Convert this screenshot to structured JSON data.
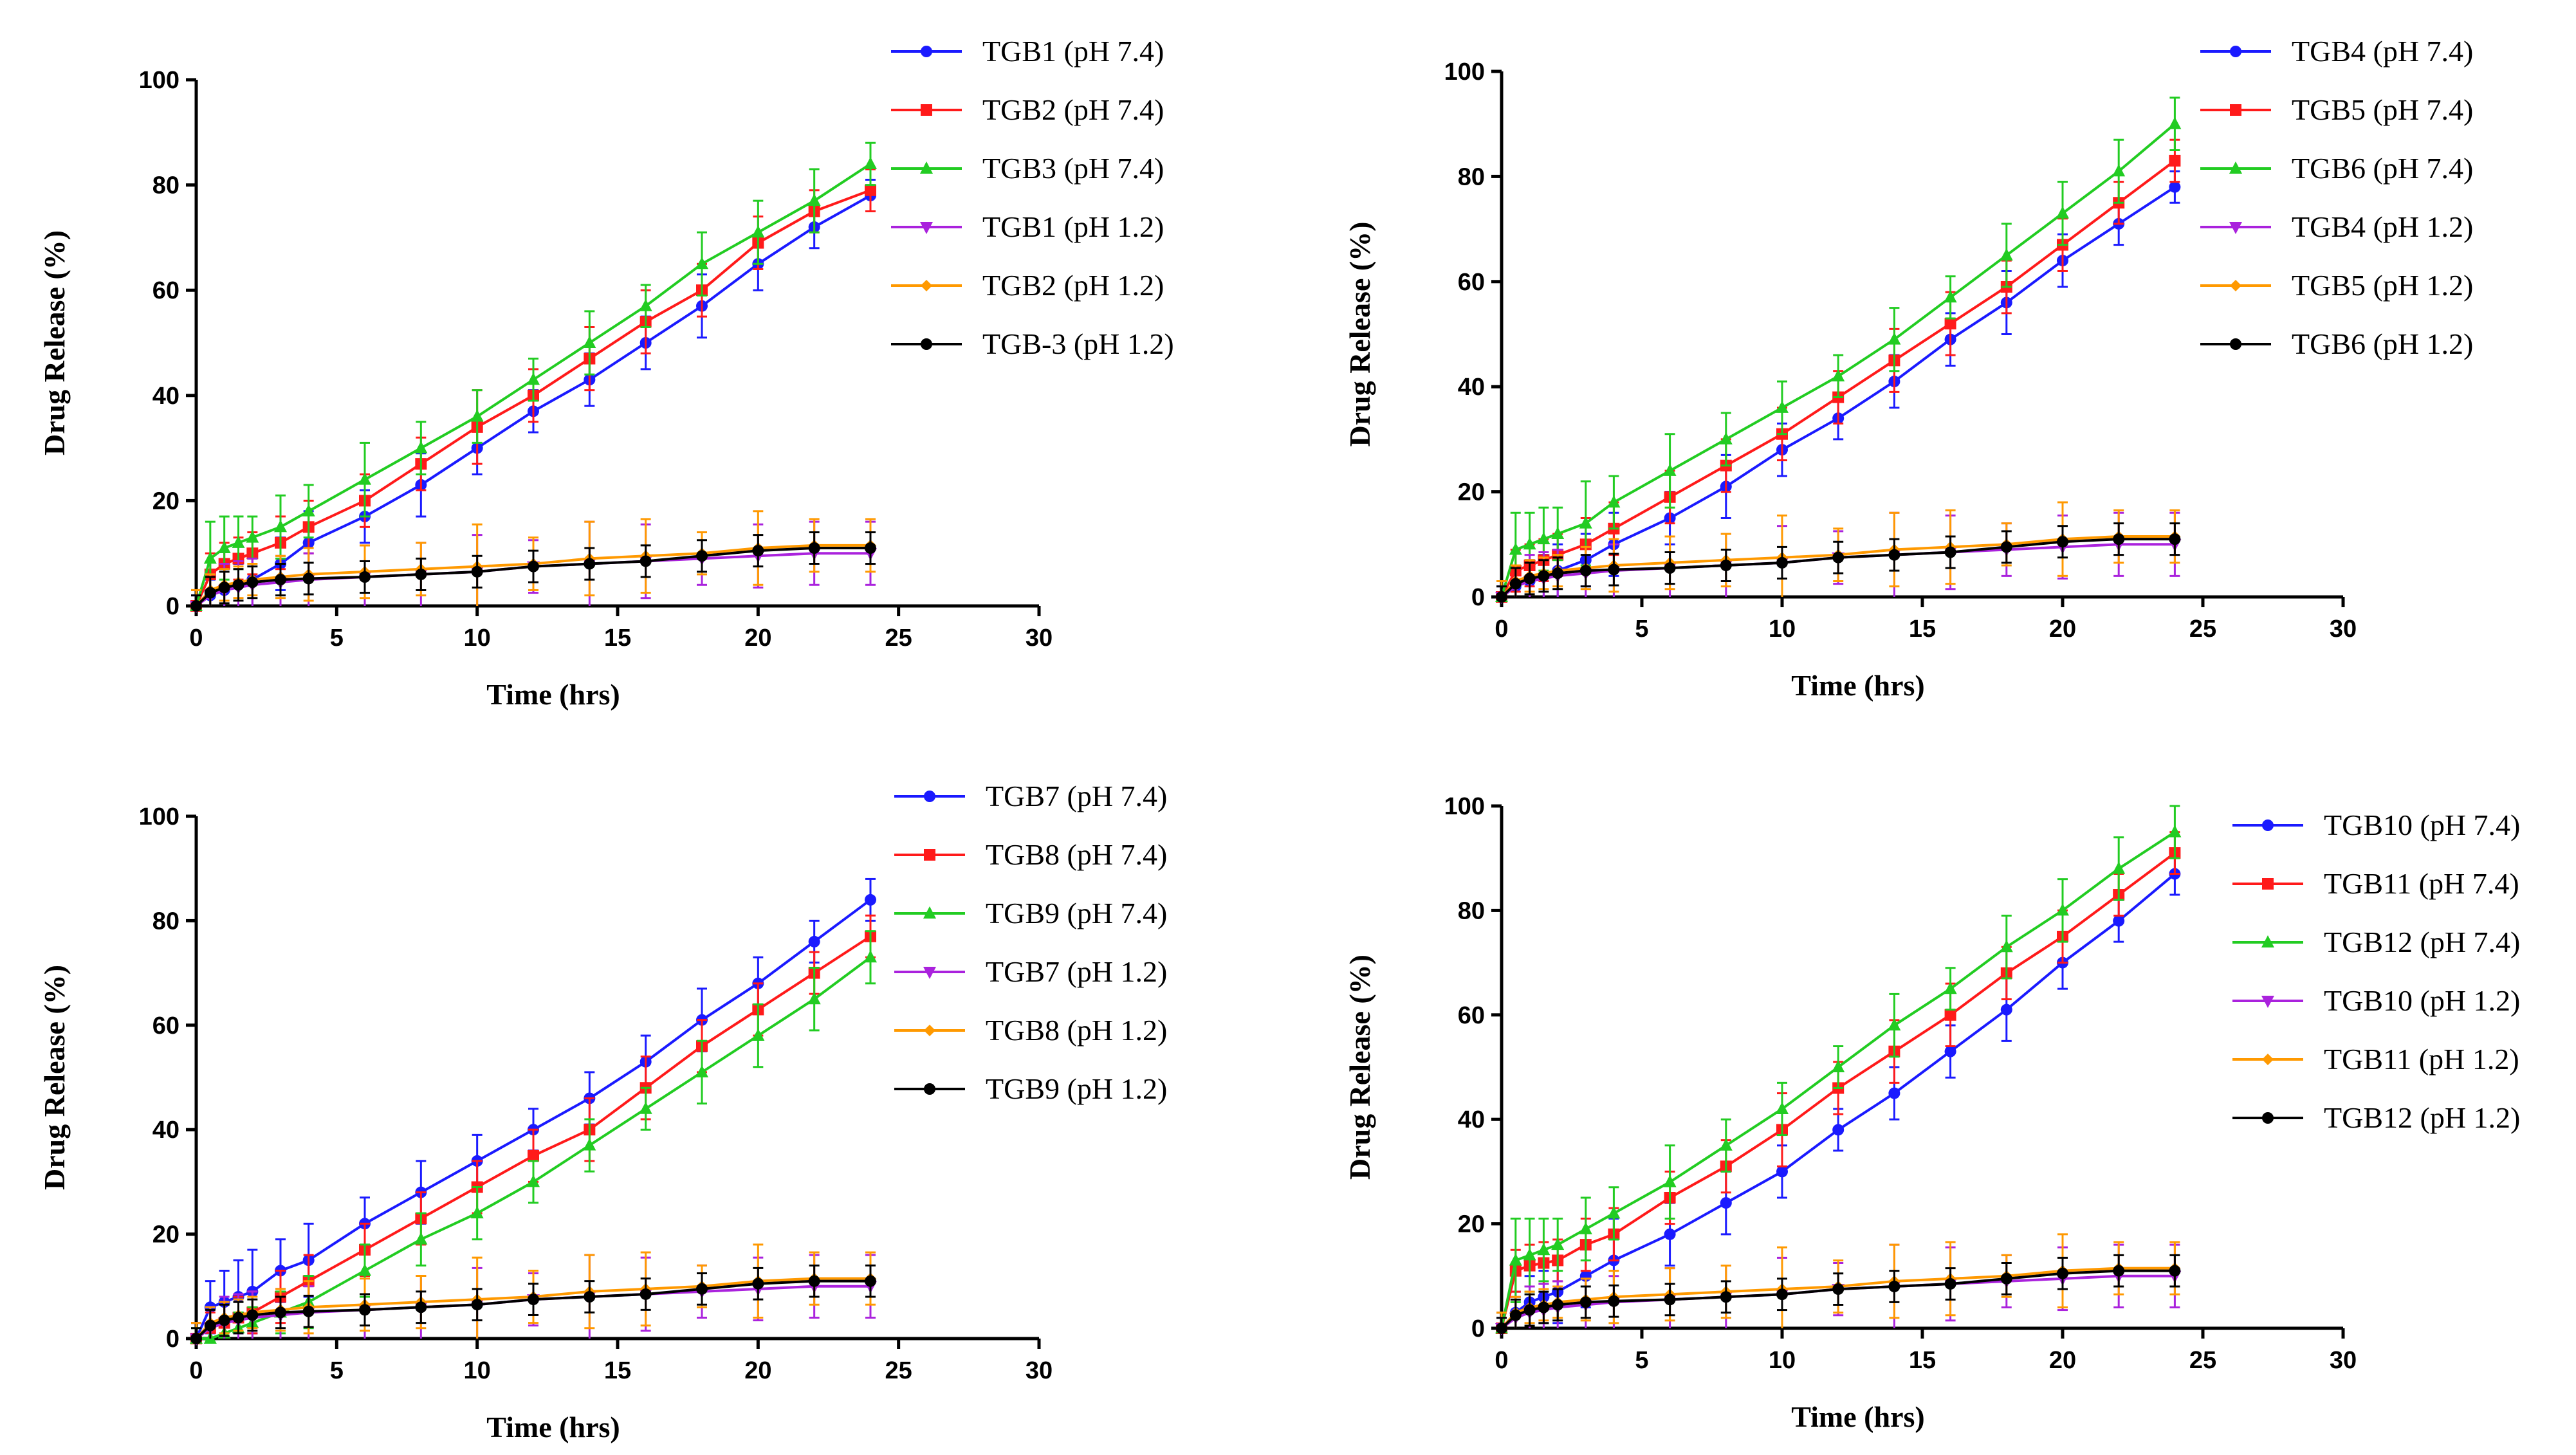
{
  "chart_data": [
    {
      "type": "line",
      "xlabel": "Time (hrs)",
      "ylabel": "Drug Release (%)",
      "xlim": [
        0,
        30
      ],
      "ylim": [
        0,
        100
      ],
      "xticks": [
        "0",
        "5",
        "10",
        "15",
        "20",
        "25",
        "30"
      ],
      "yticks": [
        "0",
        "20",
        "40",
        "60",
        "80",
        "100"
      ],
      "x": [
        0,
        0.5,
        1,
        1.5,
        2,
        3,
        4,
        6,
        8,
        10,
        12,
        14,
        16,
        18,
        20,
        22,
        24
      ],
      "legend_position": "top-right",
      "series": [
        {
          "name": "TGB1 (pH 7.4)",
          "color": "#1a1aff",
          "marker": "circle",
          "values": [
            0,
            2,
            3,
            4,
            5,
            8,
            12,
            17,
            23,
            30,
            37,
            43,
            50,
            57,
            65,
            72,
            78
          ],
          "errors": [
            2,
            3,
            4,
            4,
            5,
            5,
            6,
            5,
            6,
            5,
            4,
            5,
            5,
            6,
            5,
            4,
            3
          ]
        },
        {
          "name": "TGB2 (pH 7.4)",
          "color": "#ff1a1a",
          "marker": "square",
          "values": [
            0,
            6,
            8,
            9,
            10,
            12,
            15,
            20,
            27,
            34,
            40,
            47,
            54,
            60,
            69,
            75,
            79
          ],
          "errors": [
            3,
            4,
            4,
            4,
            4,
            5,
            5,
            5,
            5,
            7,
            5,
            6,
            6,
            5,
            5,
            4,
            4
          ]
        },
        {
          "name": "TGB3 (pH 7.4)",
          "color": "#22cc22",
          "marker": "triangle",
          "values": [
            0,
            9,
            11,
            12,
            13,
            15,
            18,
            24,
            30,
            36,
            43,
            50,
            57,
            65,
            71,
            77,
            84
          ],
          "errors": [
            3,
            7,
            6,
            5,
            4,
            6,
            5,
            7,
            5,
            5,
            4,
            6,
            4,
            6,
            6,
            6,
            4
          ]
        },
        {
          "name": "TGB1 (pH 1.2)",
          "color": "#aa22dd",
          "marker": "triangle-down",
          "values": [
            0,
            2,
            3,
            3.5,
            4,
            4.5,
            5,
            5.5,
            6,
            6.5,
            7.5,
            8,
            8.5,
            9,
            9.5,
            10,
            10
          ],
          "errors": [
            3,
            4,
            5,
            5,
            5,
            5,
            5,
            6,
            6,
            7,
            5,
            8,
            7,
            5,
            6,
            6,
            6
          ]
        },
        {
          "name": "TGB2 (pH 1.2)",
          "color": "#ff9900",
          "marker": "diamond",
          "values": [
            0,
            3,
            4,
            4.5,
            5,
            5.5,
            6,
            6.5,
            7,
            7.5,
            8,
            9,
            9.5,
            10,
            11,
            11.5,
            11.5
          ],
          "errors": [
            3,
            3,
            3,
            3,
            3,
            4,
            5,
            5,
            5,
            8,
            5,
            7,
            7,
            4,
            7,
            5,
            5
          ]
        },
        {
          "name": "TGB-3 (pH 1.2)",
          "color": "#000000",
          "marker": "circle",
          "values": [
            0,
            2.5,
            3.5,
            4,
            4.5,
            5,
            5.2,
            5.5,
            6,
            6.5,
            7.5,
            8,
            8.5,
            9.5,
            10.5,
            11,
            11
          ],
          "errors": [
            2,
            3,
            3,
            3,
            3,
            3,
            3,
            3,
            3,
            3,
            3,
            3,
            3,
            3,
            3,
            3,
            3
          ]
        }
      ]
    },
    {
      "type": "line",
      "xlabel": "Time (hrs)",
      "ylabel": "Drug Release (%)",
      "xlim": [
        0,
        30
      ],
      "ylim": [
        0,
        100
      ],
      "xticks": [
        "0",
        "5",
        "10",
        "15",
        "20",
        "25",
        "30"
      ],
      "yticks": [
        "0",
        "20",
        "40",
        "60",
        "80",
        "100"
      ],
      "x": [
        0,
        0.5,
        1,
        1.5,
        2,
        3,
        4,
        6,
        8,
        10,
        12,
        14,
        16,
        18,
        20,
        22,
        24
      ],
      "legend_position": "top-right",
      "series": [
        {
          "name": "TGB4 (pH 7.4)",
          "color": "#1a1aff",
          "marker": "circle",
          "values": [
            0,
            2,
            3,
            4,
            5,
            7,
            10,
            15,
            21,
            28,
            34,
            41,
            49,
            56,
            64,
            71,
            78
          ],
          "errors": [
            2,
            3,
            4,
            4,
            5,
            5,
            6,
            5,
            6,
            5,
            4,
            5,
            5,
            6,
            5,
            4,
            3
          ]
        },
        {
          "name": "TGB5 (pH 7.4)",
          "color": "#ff1a1a",
          "marker": "square",
          "values": [
            0,
            5,
            6,
            7,
            8,
            10,
            13,
            19,
            25,
            31,
            38,
            45,
            52,
            59,
            67,
            75,
            83
          ],
          "errors": [
            3,
            4,
            4,
            4,
            4,
            5,
            5,
            5,
            5,
            5,
            5,
            6,
            6,
            5,
            5,
            4,
            4
          ]
        },
        {
          "name": "TGB6 (pH 7.4)",
          "color": "#22cc22",
          "marker": "triangle",
          "values": [
            0,
            9,
            10,
            11,
            12,
            14,
            18,
            24,
            30,
            36,
            42,
            49,
            57,
            65,
            73,
            81,
            90
          ],
          "errors": [
            3,
            7,
            6,
            6,
            5,
            8,
            5,
            7,
            5,
            5,
            4,
            6,
            4,
            6,
            6,
            6,
            5
          ]
        },
        {
          "name": "TGB4 (pH 1.2)",
          "color": "#aa22dd",
          "marker": "triangle-down",
          "values": [
            0,
            2,
            3,
            3.5,
            4,
            4.5,
            5,
            5.5,
            6,
            6.5,
            7.5,
            8,
            8.5,
            9,
            9.5,
            10,
            10
          ],
          "errors": [
            3,
            4,
            5,
            5,
            5,
            5,
            5,
            6,
            6,
            7,
            5,
            8,
            7,
            5,
            6,
            6,
            6
          ]
        },
        {
          "name": "TGB5 (pH 1.2)",
          "color": "#ff9900",
          "marker": "diamond",
          "values": [
            0,
            3,
            4,
            4.5,
            5,
            5.5,
            6,
            6.5,
            7,
            7.5,
            8,
            9,
            9.5,
            10,
            11,
            11.5,
            11.5
          ],
          "errors": [
            3,
            3,
            3,
            3,
            3,
            4,
            5,
            5,
            5,
            8,
            5,
            7,
            7,
            4,
            7,
            5,
            5
          ]
        },
        {
          "name": "TGB6 (pH 1.2)",
          "color": "#000000",
          "marker": "circle",
          "values": [
            0,
            2.5,
            3.5,
            4,
            4.5,
            5,
            5.2,
            5.5,
            6,
            6.5,
            7.5,
            8,
            8.5,
            9.5,
            10.5,
            11,
            11
          ],
          "errors": [
            2,
            3,
            3,
            3,
            3,
            3,
            3,
            3,
            3,
            3,
            3,
            3,
            3,
            3,
            3,
            3,
            3
          ]
        }
      ]
    },
    {
      "type": "line",
      "xlabel": "Time (hrs)",
      "ylabel": "Drug Release (%)",
      "xlim": [
        0,
        30
      ],
      "ylim": [
        0,
        100
      ],
      "xticks": [
        "0",
        "5",
        "10",
        "15",
        "20",
        "25",
        "30"
      ],
      "yticks": [
        "0",
        "20",
        "40",
        "60",
        "80",
        "100"
      ],
      "x": [
        0,
        0.5,
        1,
        1.5,
        2,
        3,
        4,
        6,
        8,
        10,
        12,
        14,
        16,
        18,
        20,
        22,
        24
      ],
      "legend_position": "top-right",
      "series": [
        {
          "name": "TGB7 (pH 7.4)",
          "color": "#1a1aff",
          "marker": "circle",
          "values": [
            0,
            6,
            7,
            8,
            9,
            13,
            15,
            22,
            28,
            34,
            40,
            46,
            53,
            61,
            68,
            76,
            84
          ],
          "errors": [
            3,
            5,
            6,
            7,
            8,
            6,
            7,
            5,
            6,
            5,
            4,
            5,
            5,
            6,
            5,
            4,
            4
          ]
        },
        {
          "name": "TGB8 (pH 7.4)",
          "color": "#ff1a1a",
          "marker": "square",
          "values": [
            0,
            2,
            3,
            4,
            5,
            8,
            11,
            17,
            23,
            29,
            35,
            40,
            48,
            56,
            63,
            70,
            77
          ],
          "errors": [
            3,
            3,
            4,
            4,
            4,
            5,
            5,
            5,
            5,
            5,
            5,
            6,
            6,
            5,
            5,
            4,
            4
          ]
        },
        {
          "name": "TGB9 (pH 7.4)",
          "color": "#22cc22",
          "marker": "triangle",
          "values": [
            0,
            0,
            1,
            2,
            3,
            5,
            7,
            13,
            19,
            24,
            30,
            37,
            44,
            51,
            58,
            65,
            73
          ],
          "errors": [
            2,
            2,
            3,
            3,
            3,
            4,
            5,
            5,
            5,
            5,
            4,
            5,
            4,
            6,
            6,
            6,
            5
          ]
        },
        {
          "name": "TGB7 (pH 1.2)",
          "color": "#aa22dd",
          "marker": "triangle-down",
          "values": [
            0,
            2,
            3,
            3.5,
            4,
            4.5,
            5,
            5.5,
            6,
            6.5,
            7.5,
            8,
            8.5,
            9,
            9.5,
            10,
            10
          ],
          "errors": [
            3,
            4,
            5,
            5,
            5,
            5,
            5,
            6,
            6,
            7,
            5,
            8,
            7,
            5,
            6,
            6,
            6
          ]
        },
        {
          "name": "TGB8 (pH 1.2)",
          "color": "#ff9900",
          "marker": "diamond",
          "values": [
            0,
            3,
            4,
            4.5,
            5,
            5.5,
            6,
            6.5,
            7,
            7.5,
            8,
            9,
            9.5,
            10,
            11,
            11.5,
            11.5
          ],
          "errors": [
            3,
            3,
            3,
            3,
            3,
            4,
            5,
            5,
            5,
            8,
            5,
            7,
            7,
            4,
            7,
            5,
            5
          ]
        },
        {
          "name": "TGB9 (pH 1.2)",
          "color": "#000000",
          "marker": "circle",
          "values": [
            0,
            2.5,
            3.5,
            4,
            4.5,
            5,
            5.2,
            5.5,
            6,
            6.5,
            7.5,
            8,
            8.5,
            9.5,
            10.5,
            11,
            11
          ],
          "errors": [
            2,
            3,
            3,
            3,
            3,
            3,
            3,
            3,
            3,
            3,
            3,
            3,
            3,
            3,
            3,
            3,
            3
          ]
        }
      ]
    },
    {
      "type": "line",
      "xlabel": "Time (hrs)",
      "ylabel": "Drug Release (%)",
      "xlim": [
        0,
        30
      ],
      "ylim": [
        0,
        100
      ],
      "xticks": [
        "0",
        "5",
        "10",
        "15",
        "20",
        "25",
        "30"
      ],
      "yticks": [
        "0",
        "20",
        "40",
        "60",
        "80",
        "100"
      ],
      "x": [
        0,
        0.5,
        1,
        1.5,
        2,
        3,
        4,
        6,
        8,
        10,
        12,
        14,
        16,
        18,
        20,
        22,
        24
      ],
      "legend_position": "right",
      "series": [
        {
          "name": "TGB10 (pH 7.4)",
          "color": "#1a1aff",
          "marker": "circle",
          "values": [
            0,
            3,
            5,
            6,
            7,
            10,
            13,
            18,
            24,
            30,
            38,
            45,
            53,
            61,
            70,
            78,
            87
          ],
          "errors": [
            2,
            4,
            5,
            5,
            6,
            6,
            8,
            6,
            6,
            5,
            4,
            5,
            5,
            6,
            5,
            4,
            4
          ]
        },
        {
          "name": "TGB11 (pH 7.4)",
          "color": "#ff1a1a",
          "marker": "square",
          "values": [
            0,
            11,
            12,
            12.5,
            13,
            16,
            18,
            25,
            31,
            38,
            46,
            53,
            60,
            68,
            75,
            83,
            91
          ],
          "errors": [
            3,
            4,
            4,
            4,
            4,
            5,
            5,
            5,
            5,
            7,
            5,
            6,
            6,
            5,
            5,
            4,
            4
          ]
        },
        {
          "name": "TGB12 (pH 7.4)",
          "color": "#22cc22",
          "marker": "triangle",
          "values": [
            0,
            13,
            14,
            15,
            16,
            19,
            22,
            28,
            35,
            42,
            50,
            58,
            65,
            73,
            80,
            88,
            95
          ],
          "errors": [
            3,
            8,
            7,
            6,
            5,
            6,
            5,
            7,
            5,
            5,
            4,
            6,
            4,
            6,
            6,
            6,
            5
          ]
        },
        {
          "name": "TGB10 (pH 1.2)",
          "color": "#aa22dd",
          "marker": "triangle-down",
          "values": [
            0,
            2,
            3,
            3.5,
            4,
            4.5,
            5,
            5.5,
            6,
            6.5,
            7.5,
            8,
            8.5,
            9,
            9.5,
            10,
            10
          ],
          "errors": [
            3,
            4,
            5,
            5,
            5,
            5,
            5,
            6,
            6,
            7,
            5,
            8,
            7,
            5,
            6,
            6,
            6
          ]
        },
        {
          "name": "TGB11 (pH 1.2)",
          "color": "#ff9900",
          "marker": "diamond",
          "values": [
            0,
            3,
            4,
            4.5,
            5,
            5.5,
            6,
            6.5,
            7,
            7.5,
            8,
            9,
            9.5,
            10,
            11,
            11.5,
            11.5
          ],
          "errors": [
            3,
            3,
            3,
            3,
            3,
            4,
            5,
            5,
            5,
            8,
            5,
            7,
            7,
            4,
            7,
            5,
            5
          ]
        },
        {
          "name": "TGB12 (pH 1.2)",
          "color": "#000000",
          "marker": "circle",
          "values": [
            0,
            2.5,
            3.5,
            4,
            4.5,
            5,
            5.2,
            5.5,
            6,
            6.5,
            7.5,
            8,
            8.5,
            9.5,
            10.5,
            11,
            11
          ],
          "errors": [
            2,
            3,
            3,
            3,
            3,
            3,
            3,
            3,
            3,
            3,
            3,
            3,
            3,
            3,
            3,
            3,
            3
          ]
        }
      ]
    }
  ]
}
